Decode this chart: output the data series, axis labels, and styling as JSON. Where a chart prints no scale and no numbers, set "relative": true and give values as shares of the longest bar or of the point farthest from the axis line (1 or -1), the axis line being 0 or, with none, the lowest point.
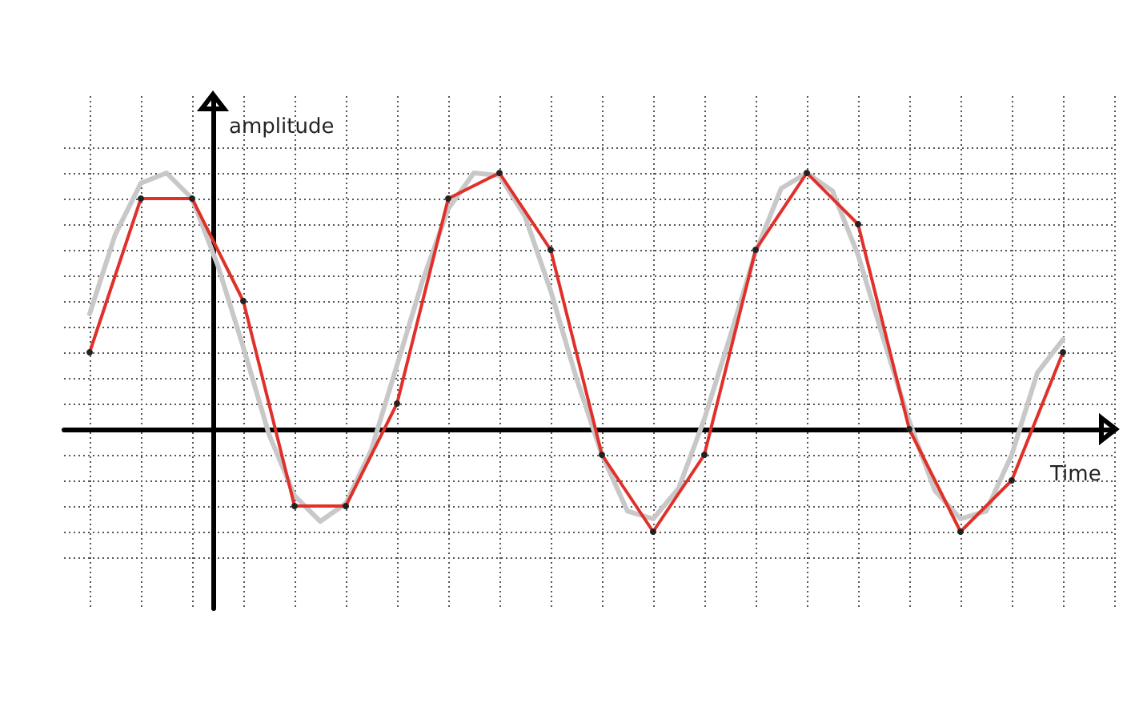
{
  "chart_data": {
    "type": "line",
    "xlabel": "Time",
    "ylabel": "amplitude",
    "relative": true,
    "grid": true,
    "categories": [
      null,
      null,
      null,
      null,
      null,
      null,
      null,
      null,
      null,
      null,
      null,
      null,
      null,
      null,
      null,
      null,
      null,
      null,
      null,
      null,
      null,
      null,
      null,
      null,
      null,
      null,
      null,
      null,
      null,
      null,
      null,
      null,
      null,
      null,
      null,
      null,
      null,
      null,
      null,
      null,
      null,
      null
    ],
    "series": [
      {
        "color": "#c8c8c8",
        "marker": "none",
        "values": [
          null,
          0.45,
          0.76,
          0.96,
          1.0,
          0.9,
          0.64,
          0.32,
          -0.02,
          -0.26,
          -0.36,
          -0.29,
          -0.08,
          0.25,
          0.58,
          0.86,
          1.0,
          0.99,
          0.83,
          0.54,
          0.2,
          -0.1,
          -0.32,
          -0.35,
          -0.23,
          0.04,
          0.36,
          0.69,
          0.94,
          1.0,
          0.93,
          0.68,
          0.35,
          0.03,
          -0.24,
          -0.35,
          -0.32,
          -0.1,
          0.22,
          0.35,
          null,
          null
        ]
      },
      {
        "color": "#e0302a",
        "marker": "circle",
        "values": [
          null,
          0.3,
          null,
          0.9,
          null,
          0.9,
          null,
          0.5,
          null,
          -0.3,
          null,
          -0.3,
          null,
          0.1,
          null,
          0.9,
          null,
          1.0,
          null,
          0.7,
          null,
          -0.1,
          null,
          -0.4,
          null,
          -0.1,
          null,
          0.7,
          null,
          1.0,
          null,
          0.8,
          null,
          0.0,
          null,
          -0.4,
          null,
          -0.2,
          null,
          0.3,
          null,
          null
        ]
      }
    ]
  }
}
